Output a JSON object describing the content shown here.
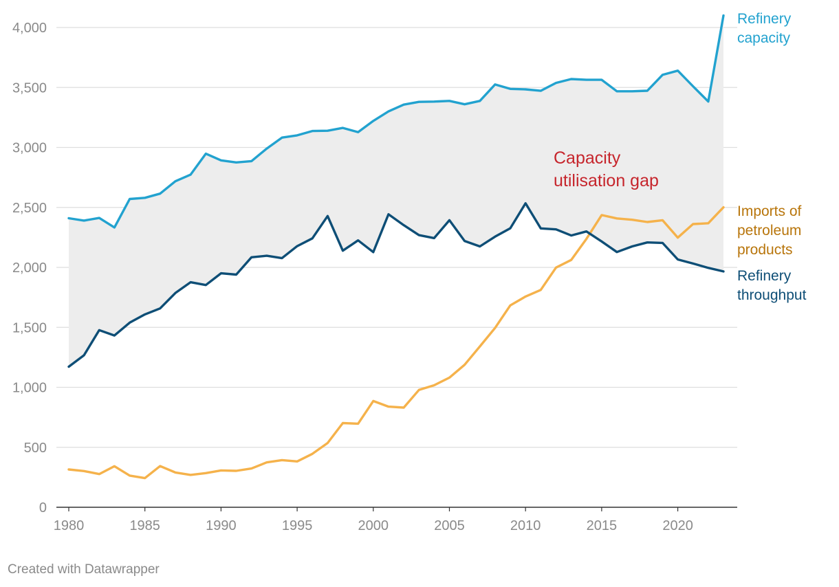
{
  "footer": "Created with Datawrapper",
  "colors": {
    "capacity": "#22a2cf",
    "throughput": "#0e4e76",
    "imports": "#f5b24b",
    "imports_label": "#b8750b",
    "gap_fill": "#ededed",
    "gap_label": "#c6252c",
    "grid": "#dedede",
    "axis": "#333333"
  },
  "chart_data": {
    "type": "line",
    "title": "",
    "xlabel": "",
    "ylabel": "",
    "xlim": [
      1980,
      2023
    ],
    "ylim": [
      0,
      4000
    ],
    "y_ticks": [
      0,
      500,
      1000,
      1500,
      2000,
      2500,
      3000,
      3500,
      4000
    ],
    "y_tick_labels": [
      "0",
      "500",
      "1,000",
      "1,500",
      "2,000",
      "2,500",
      "3,000",
      "3,500",
      "4,000"
    ],
    "x_ticks": [
      1980,
      1985,
      1990,
      1995,
      2000,
      2005,
      2010,
      2015,
      2020
    ],
    "x_tick_labels": [
      "1980",
      "1985",
      "1990",
      "1995",
      "2000",
      "2005",
      "2010",
      "2015",
      "2020"
    ],
    "grid": true,
    "x": [
      1980,
      1981,
      1982,
      1983,
      1984,
      1985,
      1986,
      1987,
      1988,
      1989,
      1990,
      1991,
      1992,
      1993,
      1994,
      1995,
      1996,
      1997,
      1998,
      1999,
      2000,
      2001,
      2002,
      2003,
      2004,
      2005,
      2006,
      2007,
      2008,
      2009,
      2010,
      2011,
      2012,
      2013,
      2014,
      2015,
      2016,
      2017,
      2018,
      2019,
      2020,
      2021,
      2022,
      2023
    ],
    "series": [
      {
        "name": "Refinery capacity",
        "label_lines": [
          "Refinery",
          "capacity"
        ],
        "color_key": "capacity",
        "values": [
          2410,
          2390,
          2412,
          2333,
          2570,
          2580,
          2615,
          2718,
          2773,
          2948,
          2892,
          2875,
          2886,
          2990,
          3082,
          3101,
          3137,
          3139,
          3163,
          3127,
          3221,
          3300,
          3357,
          3380,
          3382,
          3388,
          3360,
          3388,
          3525,
          3488,
          3484,
          3472,
          3538,
          3570,
          3564,
          3564,
          3468,
          3468,
          3473,
          3605,
          3640,
          3510,
          3383,
          4100
        ]
      },
      {
        "name": "Imports of petroleum products",
        "label_lines": [
          "Imports of",
          "petroleum",
          "products"
        ],
        "color_key": "imports",
        "values": [
          315,
          302,
          277,
          342,
          264,
          243,
          343,
          290,
          270,
          285,
          307,
          304,
          323,
          374,
          393,
          382,
          445,
          536,
          702,
          697,
          886,
          839,
          831,
          978,
          1017,
          1081,
          1188,
          1341,
          1495,
          1683,
          1757,
          1812,
          1998,
          2062,
          2237,
          2436,
          2408,
          2397,
          2378,
          2393,
          2248,
          2361,
          2368,
          2501
        ]
      },
      {
        "name": "Refinery throughput",
        "label_lines": [
          "Refinery",
          "throughput"
        ],
        "color_key": "throughput",
        "values": [
          1172,
          1267,
          1477,
          1432,
          1539,
          1608,
          1658,
          1786,
          1876,
          1853,
          1951,
          1940,
          2084,
          2097,
          2077,
          2177,
          2242,
          2428,
          2139,
          2225,
          2127,
          2443,
          2352,
          2269,
          2244,
          2393,
          2220,
          2175,
          2256,
          2326,
          2534,
          2325,
          2317,
          2266,
          2300,
          2216,
          2128,
          2175,
          2208,
          2204,
          2066,
          2032,
          1996,
          1966
        ]
      }
    ],
    "annotations": [
      {
        "text_lines": [
          "Capacity",
          "utilisation gap"
        ],
        "color_key": "gap_label"
      }
    ]
  }
}
